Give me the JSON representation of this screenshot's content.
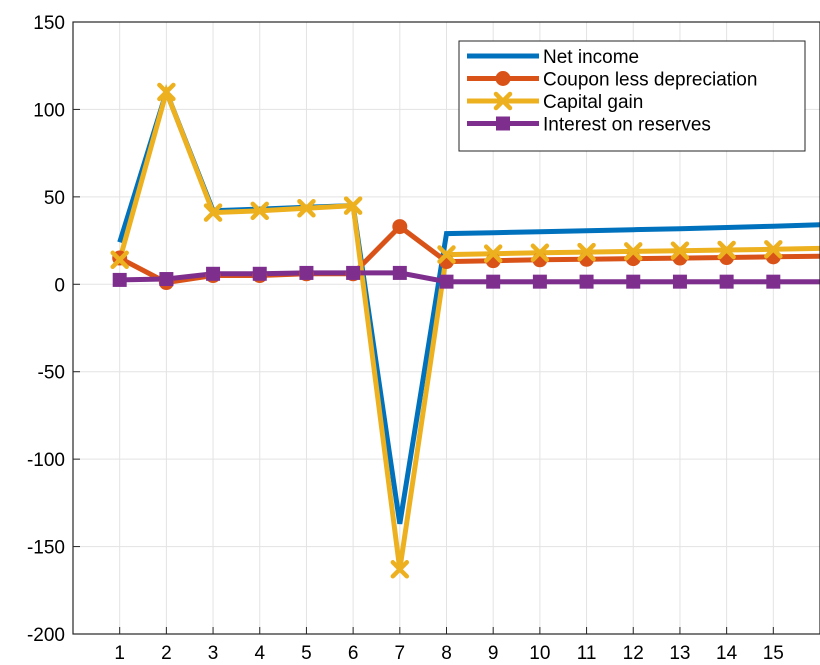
{
  "chart_data": {
    "type": "line",
    "x": [
      1,
      2,
      3,
      4,
      5,
      6,
      7,
      8,
      9,
      10,
      11,
      12,
      13,
      14,
      15,
      16
    ],
    "xlim": [
      0,
      16
    ],
    "ylim": [
      -200,
      150
    ],
    "xticks": [
      1,
      2,
      3,
      4,
      5,
      6,
      7,
      8,
      9,
      10,
      11,
      12,
      13,
      14,
      15
    ],
    "yticks": [
      -200,
      -150,
      -100,
      -50,
      0,
      50,
      100,
      150
    ],
    "grid": true,
    "legend_position": "top-right",
    "title": "",
    "xlabel": "",
    "ylabel": "",
    "series": [
      {
        "name": "Net income",
        "color": "#0072BD",
        "marker": "none",
        "values": [
          24,
          110,
          42,
          43,
          44,
          45,
          -137,
          29,
          29.5,
          30,
          30.6,
          31.2,
          31.8,
          32.5,
          33.2,
          34
        ]
      },
      {
        "name": "Coupon less depreciation",
        "color": "#D95319",
        "marker": "circle",
        "values": [
          15,
          1,
          5,
          5,
          6,
          6,
          33,
          13,
          13.5,
          14,
          14.3,
          14.7,
          15,
          15.3,
          15.7,
          16
        ]
      },
      {
        "name": "Capital gain",
        "color": "#EDB120",
        "marker": "x",
        "values": [
          14,
          110,
          41,
          42,
          43.5,
          45,
          -163,
          17,
          17.5,
          18,
          18.4,
          18.8,
          19.2,
          19.6,
          20,
          20.5
        ]
      },
      {
        "name": "Interest on reserves",
        "color": "#7E2F8E",
        "marker": "square",
        "values": [
          2.5,
          3,
          6,
          6,
          6.5,
          6.5,
          6.5,
          1.5,
          1.5,
          1.5,
          1.5,
          1.5,
          1.5,
          1.5,
          1.5,
          1.5
        ]
      }
    ]
  }
}
